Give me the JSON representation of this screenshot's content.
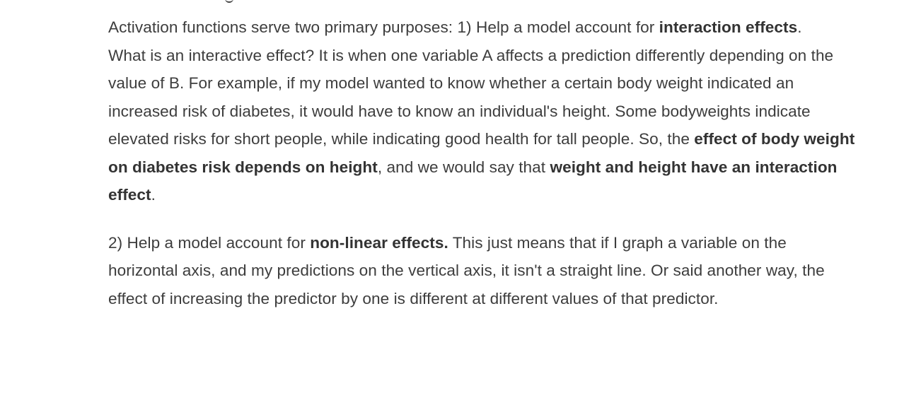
{
  "article": {
    "p1": {
      "t0": "Activation functions serve two primary purposes: 1) Help a model account for ",
      "b0": "interaction effects",
      "t1": "."
    },
    "p2": {
      "t0": "What is an interactive effect? It is when one variable A affects a prediction differently depending on the value of B. For example, if my model wanted to know whether a certain body weight indicated an increased risk of diabetes, it would have to know an individual's height. Some bodyweights indicate elevated risks for short people, while indicating good health for tall people. So, the ",
      "b0": "effect of body weight on diabetes risk depends on height",
      "t1": ", and we would say that ",
      "b1": "weight and height have an interaction effect",
      "t2": "."
    },
    "p3": {
      "t0": "2) Help a model account for ",
      "b0": "non-linear effects.",
      "t1": " This just means that if I graph a variable on the horizontal axis, and my predictions on the vertical axis, it isn't a straight line. Or said another way, the effect of increasing the predictor by one is different at different values of that predictor."
    }
  }
}
